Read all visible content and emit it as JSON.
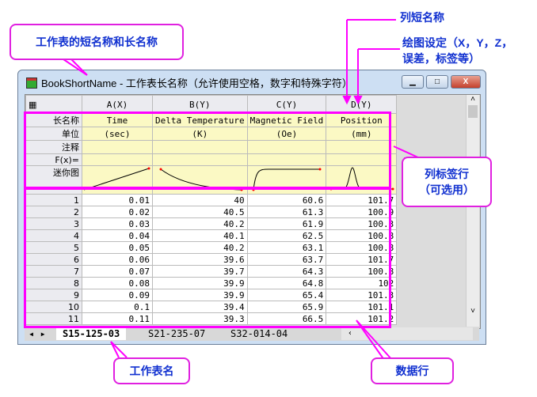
{
  "window": {
    "title": "BookShortName - 工作表长名称（允许使用空格，数字和特殊字符）",
    "minimize": "▁",
    "maximize": "□",
    "close": "X"
  },
  "columns": [
    {
      "short": "A(X)",
      "long": "Time",
      "unit": "(sec)"
    },
    {
      "short": "B(Y)",
      "long": "Delta Temperature",
      "unit": "(K)"
    },
    {
      "short": "C(Y)",
      "long": "Magnetic Field",
      "unit": "(Oe)"
    },
    {
      "short": "D(Y)",
      "long": "Position",
      "unit": "(mm)"
    }
  ],
  "row_labels": {
    "long_name": "长名称",
    "unit": "单位",
    "comment": "注释",
    "fx": "F(x)=",
    "sparkline": "迷你图"
  },
  "rows": [
    [
      "1",
      "0.01",
      "40",
      "60.6",
      "101.7"
    ],
    [
      "2",
      "0.02",
      "40.5",
      "61.3",
      "100.9"
    ],
    [
      "3",
      "0.03",
      "40.2",
      "61.9",
      "100.3"
    ],
    [
      "4",
      "0.04",
      "40.1",
      "62.5",
      "100.8"
    ],
    [
      "5",
      "0.05",
      "40.2",
      "63.1",
      "100.8"
    ],
    [
      "6",
      "0.06",
      "39.6",
      "63.7",
      "101.7"
    ],
    [
      "7",
      "0.07",
      "39.7",
      "64.3",
      "100.8"
    ],
    [
      "8",
      "0.08",
      "39.9",
      "64.8",
      "102"
    ],
    [
      "9",
      "0.09",
      "39.9",
      "65.4",
      "101.3"
    ],
    [
      "10",
      "0.1",
      "39.4",
      "65.9",
      "101.1"
    ],
    [
      "11",
      "0.11",
      "39.3",
      "66.5",
      "101.2"
    ]
  ],
  "tabs": [
    "S15-125-03",
    "S21-235-07",
    "S32-014-04"
  ],
  "active_tab": 0,
  "callouts": {
    "sheet_names": "工作表的短名称和长名称",
    "col_short": "列短名称",
    "plot_designation": "绘图设定（X，Y，Z，\n误差，标签等）",
    "label_rows": "列标签行\n（可选用）",
    "sheet_tab": "工作表名",
    "data_rows": "数据行"
  },
  "accent": "#ff00ff"
}
